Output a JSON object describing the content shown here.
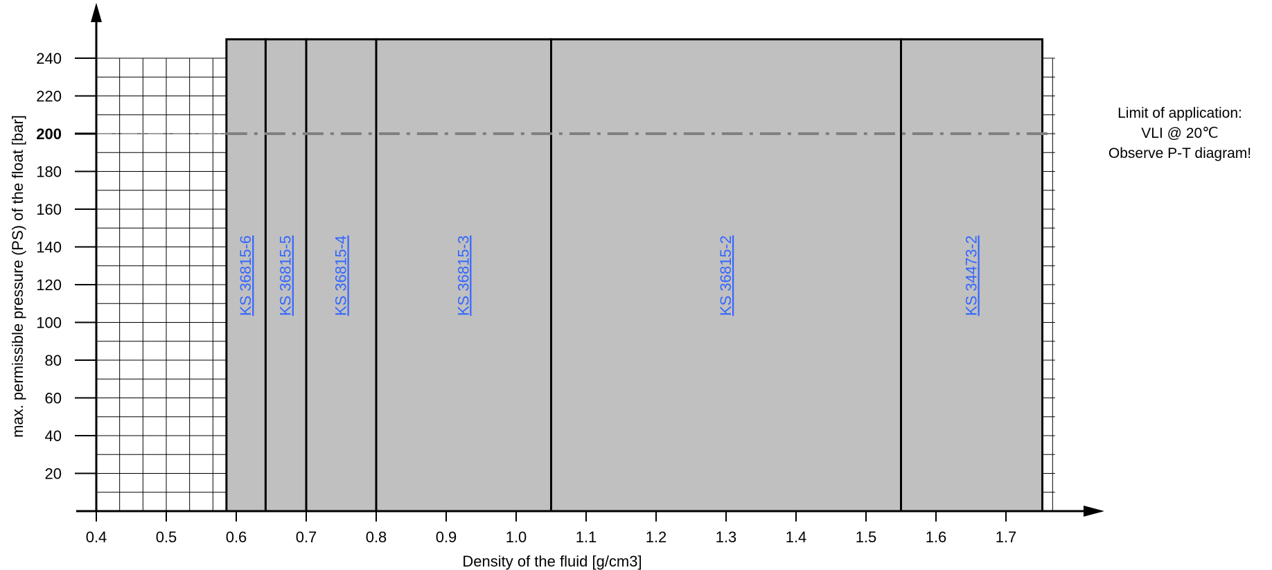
{
  "chart_data": {
    "type": "area",
    "xlabel": "Density of the fluid [g/cm3]",
    "ylabel": "max. permissible pressure (PS) of the float [bar]",
    "x_ticks": [
      "0.4",
      "0.5",
      "0.6",
      "0.7",
      "0.8",
      "0.9",
      "1.0",
      "1.1",
      "1.2",
      "1.3",
      "1.4",
      "1.5",
      "1.6",
      "1.7"
    ],
    "y_ticks": [
      "20",
      "40",
      "60",
      "80",
      "100",
      "120",
      "140",
      "160",
      "180",
      "200",
      "220",
      "240"
    ],
    "xlim": [
      0.4,
      1.77
    ],
    "ylim": [
      0,
      240
    ],
    "grid": true,
    "floats": [
      {
        "label": "KS 36815-6",
        "density_min": 0.586,
        "density_max": 0.642,
        "pressure_max": 250
      },
      {
        "label": "KS 36815-5",
        "density_min": 0.642,
        "density_max": 0.7,
        "pressure_max": 250
      },
      {
        "label": "KS 36815-4",
        "density_min": 0.7,
        "density_max": 0.8,
        "pressure_max": 250
      },
      {
        "label": "KS 36815-3",
        "density_min": 0.8,
        "density_max": 1.05,
        "pressure_max": 250
      },
      {
        "label": "KS 36815-2",
        "density_min": 1.05,
        "density_max": 1.55,
        "pressure_max": 250
      },
      {
        "label": "KS 34473-2",
        "density_min": 1.55,
        "density_max": 1.752,
        "pressure_max": 250
      }
    ],
    "limit_line": {
      "value": 200,
      "bold_tick": "200"
    },
    "annotation": [
      "Limit of application:",
      "VLI @ 20℃",
      "Observe P-T diagram!"
    ],
    "colors": {
      "fill": "#c0c0c0",
      "limit_line": "#808080",
      "link": "#3366ff"
    }
  }
}
